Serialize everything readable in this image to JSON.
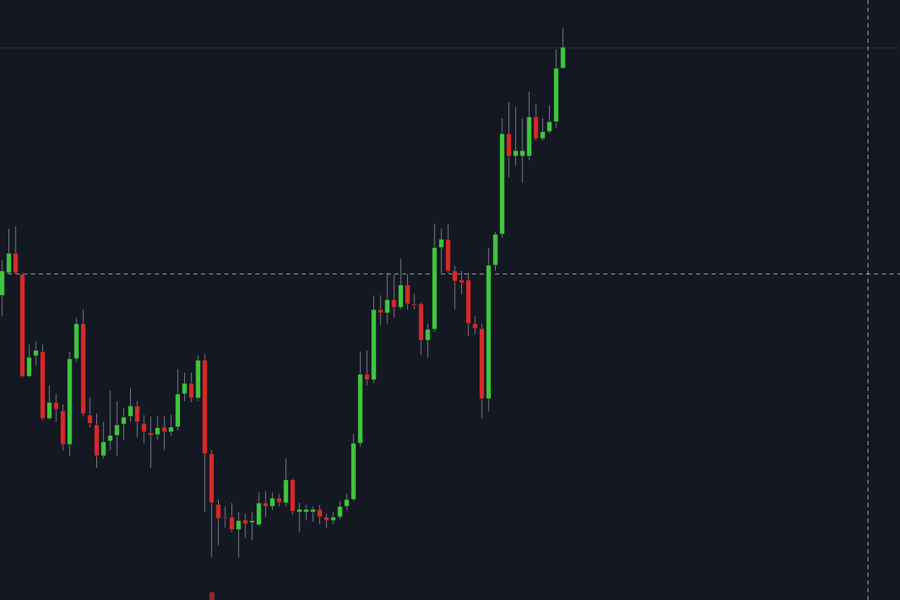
{
  "chart_data": {
    "type": "candlestick",
    "ylim": [
      0,
      853
    ],
    "up_color": "#3ec63e",
    "down_color": "#d42a2a",
    "open": [
      433,
      465,
      493,
      463,
      318,
      347,
      353,
      258,
      281,
      269,
      221,
      343,
      393,
      263,
      249,
      205,
      226,
      234,
      250,
      261,
      276,
      251,
      238,
      235,
      246,
      239,
      246,
      293,
      308,
      287,
      341,
      208,
      136,
      118,
      118,
      100,
      114,
      110,
      107,
      138,
      133,
      145,
      138,
      171,
      125,
      125,
      125,
      129,
      118,
      113,
      118,
      133,
      143,
      223,
      321,
      313,
      413,
      408,
      427,
      416,
      448,
      421,
      421,
      369,
      385,
      501,
      513,
      468,
      455,
      455,
      393,
      386,
      286,
      476,
      520,
      663,
      631,
      631,
      631,
      687,
      656,
      666,
      680,
      756
    ],
    "high": [
      483,
      528,
      531,
      465,
      363,
      368,
      363,
      305,
      293,
      278,
      353,
      401,
      413,
      288,
      265,
      253,
      298,
      283,
      273,
      301,
      283,
      263,
      261,
      261,
      261,
      263,
      328,
      323,
      323,
      348,
      350,
      213,
      143,
      133,
      138,
      125,
      123,
      125,
      153,
      155,
      153,
      151,
      201,
      173,
      138,
      135,
      133,
      135,
      123,
      125,
      141,
      151,
      236,
      353,
      355,
      433,
      433,
      465,
      463,
      485,
      463,
      435,
      423,
      393,
      535,
      528,
      535,
      475,
      468,
      465,
      403,
      393,
      501,
      523,
      685,
      708,
      701,
      685,
      723,
      705,
      685,
      703,
      783,
      813
    ],
    "low": [
      403,
      463,
      463,
      316,
      316,
      333,
      256,
      256,
      253,
      213,
      205,
      338,
      261,
      245,
      188,
      201,
      213,
      205,
      228,
      253,
      231,
      223,
      188,
      228,
      213,
      233,
      241,
      283,
      281,
      283,
      125,
      61,
      78,
      103,
      96,
      60,
      88,
      85,
      105,
      118,
      128,
      133,
      133,
      121,
      96,
      113,
      111,
      108,
      103,
      108,
      115,
      128,
      141,
      218,
      305,
      308,
      391,
      393,
      401,
      413,
      413,
      413,
      348,
      345,
      381,
      465,
      465,
      413,
      435,
      375,
      378,
      258,
      268,
      468,
      515,
      601,
      618,
      593,
      625,
      653,
      653,
      663,
      671,
      756
    ],
    "close": [
      468,
      493,
      465,
      318,
      345,
      355,
      258,
      281,
      271,
      221,
      343,
      393,
      265,
      251,
      205,
      225,
      234,
      249,
      260,
      276,
      253,
      239,
      234,
      245,
      239,
      246,
      293,
      308,
      287,
      341,
      208,
      138,
      116,
      116,
      100,
      113,
      108,
      113,
      138,
      133,
      145,
      139,
      171,
      126,
      129,
      129,
      129,
      118,
      113,
      118,
      133,
      143,
      223,
      321,
      313,
      413,
      408,
      427,
      416,
      448,
      421,
      419,
      369,
      385,
      501,
      513,
      468,
      453,
      451,
      393,
      386,
      286,
      476,
      520,
      663,
      631,
      639,
      639,
      687,
      656,
      666,
      680,
      756,
      786
    ]
  }
}
